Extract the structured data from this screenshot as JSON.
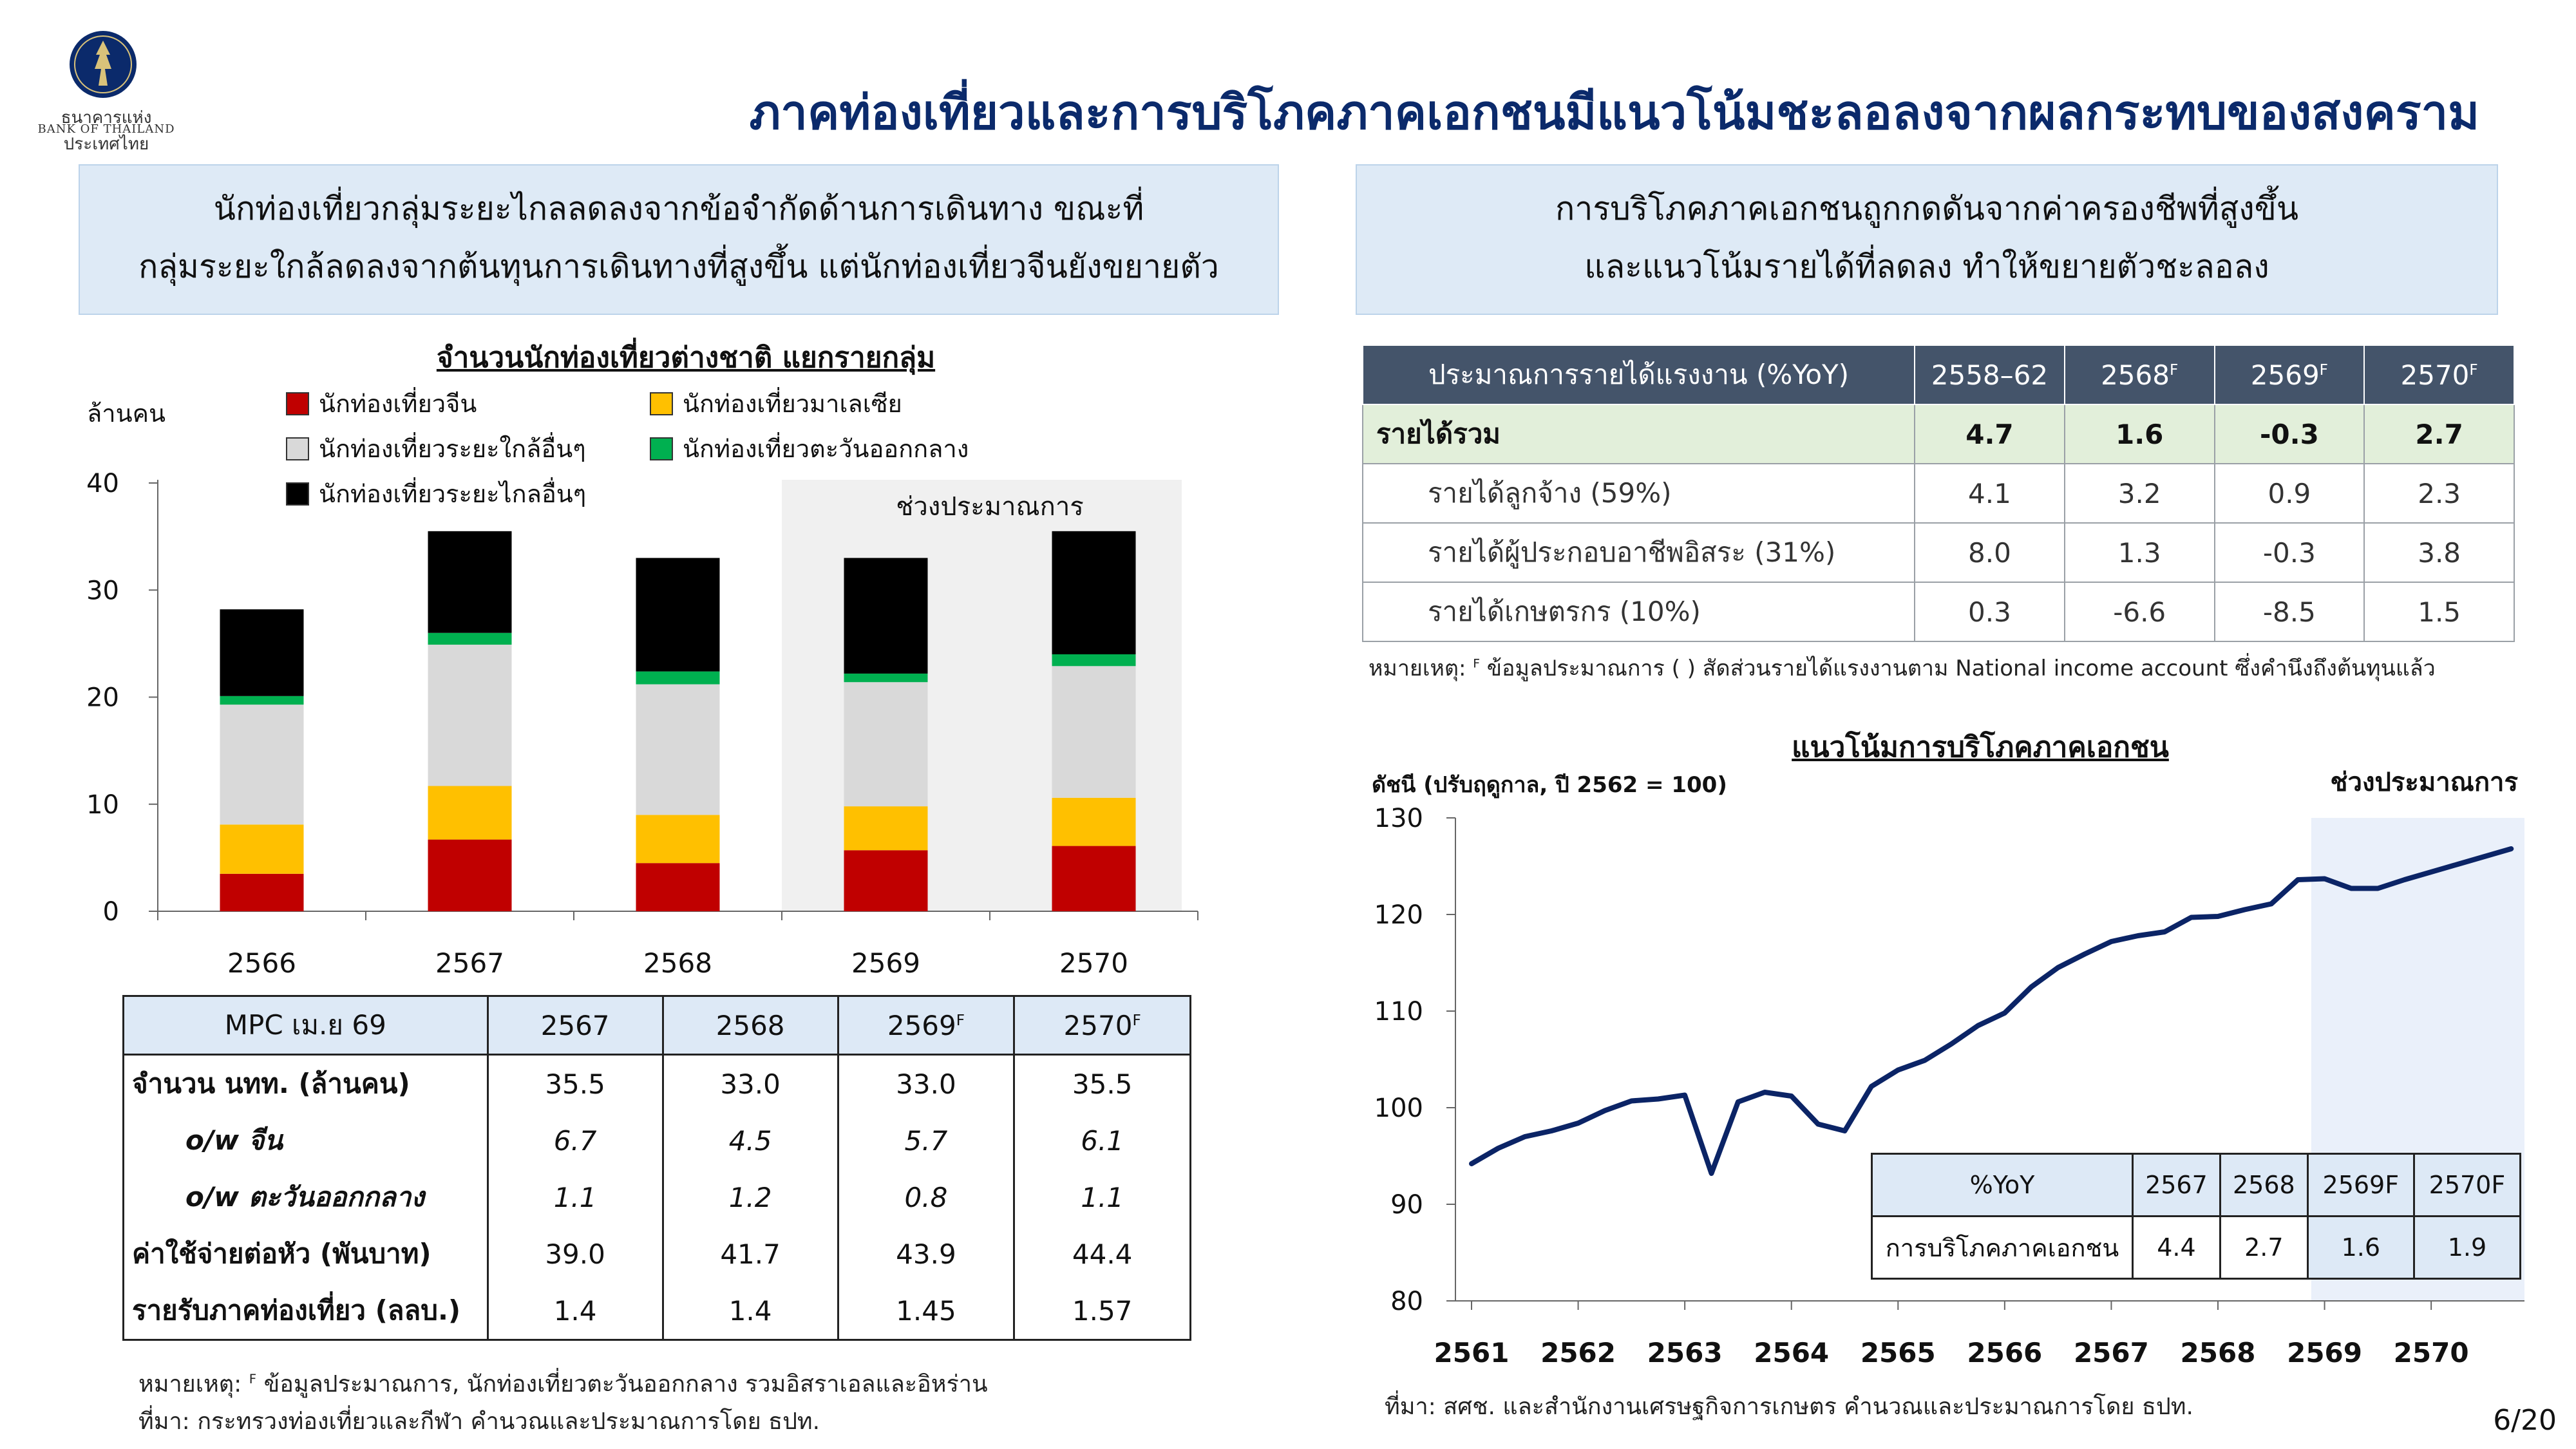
{
  "header": {
    "title": "ภาคท่องเที่ยวและการบริโภคภาคเอกชนมีแนวโน้มชะลอลงจากผลกระทบของสงคราม",
    "logo_text_th": "ธนาคารแห่งประเทศไทย",
    "logo_text_en": "BANK OF THAILAND",
    "page_number": "6/20"
  },
  "left": {
    "box_line1": "นักท่องเที่ยวกลุ่มระยะไกลลดลงจากข้อจำกัดด้านการเดินทาง ขณะที่",
    "box_line2": "กลุ่มระยะใกล้ลดลงจากต้นทุนการเดินทางที่สูงขึ้น แต่นักท่องเที่ยวจีนยังขยายตัว",
    "table": {
      "header": [
        "MPC เม.ย 69",
        "2567",
        "2568",
        "2569",
        "2570"
      ],
      "header_sup": [
        "",
        "",
        "",
        "F",
        "F"
      ],
      "rows": [
        {
          "label": "จำนวน นทท. (ล้านคน)",
          "values": [
            "35.5",
            "33.0",
            "33.0",
            "35.5"
          ]
        },
        {
          "label": "o/w จีน",
          "values": [
            "6.7",
            "4.5",
            "5.7",
            "6.1"
          ]
        },
        {
          "label": "o/w ตะวันออกกลาง",
          "values": [
            "1.1",
            "1.2",
            "0.8",
            "1.1"
          ]
        },
        {
          "label": "ค่าใช้จ่ายต่อหัว (พันบาท)",
          "values": [
            "39.0",
            "41.7",
            "43.9",
            "44.4"
          ]
        },
        {
          "label": "รายรับภาคท่องเที่ยว (ลลบ.)",
          "values": [
            "1.4",
            "1.4",
            "1.45",
            "1.57"
          ]
        }
      ]
    },
    "note_label": "หมายเหตุ:",
    "note_sup": "F",
    "note_text": "ข้อมูลประมาณการ, นักท่องเที่ยวตะวันออกกลาง รวมอิสราเอลและอิหร่าน",
    "source": "ที่มา: กระทรวงท่องเที่ยวและกีฬา คำนวณและประมาณการโดย ธปท."
  },
  "right": {
    "box_line1": "การบริโภคภาคเอกชนถูกกดดันจากค่าครองชีพที่สูงขึ้น",
    "box_line2": "และแนวโน้มรายได้ที่ลดลง ทำให้ขยายตัวชะลอลง",
    "income_table": {
      "header": [
        "ประมาณการรายได้แรงงาน (%YoY)",
        "2558–62",
        "2568",
        "2569",
        "2570"
      ],
      "header_sup": [
        "",
        "",
        "F",
        "F",
        "F"
      ],
      "rows": [
        {
          "label": "รายได้รวม",
          "values": [
            "4.7",
            "1.6",
            "-0.3",
            "2.7"
          ]
        },
        {
          "label": "รายได้ลูกจ้าง (59%)",
          "values": [
            "4.1",
            "3.2",
            "0.9",
            "2.3"
          ]
        },
        {
          "label": "รายได้ผู้ประกอบอาชีพอิสระ (31%)",
          "values": [
            "8.0",
            "1.3",
            "-0.3",
            "3.8"
          ]
        },
        {
          "label": "รายได้เกษตรกร (10%)",
          "values": [
            "0.3",
            "-6.6",
            "-8.5",
            "1.5"
          ]
        }
      ]
    },
    "income_note_label": "หมายเหตุ:",
    "income_note_sup": "F",
    "income_note_text": "ข้อมูลประมาณการ ( ) สัดส่วนรายได้แรงงานตาม National income account ซึ่งคำนึงถึงต้นทุนแล้ว",
    "yoy_table": {
      "header": [
        "%YoY",
        "2567",
        "2568",
        "2569F",
        "2570F"
      ],
      "row_label": "การบริโภคภาคเอกชน",
      "values": [
        "4.4",
        "2.7",
        "1.6",
        "1.9"
      ]
    },
    "source": "ที่มา: สศช. และสำนักงานเศรษฐกิจการเกษตร คำนวณและประมาณการโดย ธปท."
  },
  "chart_data": [
    {
      "type": "bar",
      "stacked": true,
      "title": "จำนวนนักท่องเที่ยวต่างชาติ แยกรายกลุ่ม",
      "ylabel": "ล้านคน",
      "ylim": [
        0,
        40
      ],
      "yticks": [
        0,
        10,
        20,
        30,
        40
      ],
      "categories": [
        "2566",
        "2567",
        "2568",
        "2569",
        "2570"
      ],
      "forecast_label": "ช่วงประมาณการ",
      "forecast_categories": [
        "2569",
        "2570"
      ],
      "colors": {
        "จีน": "#c00000",
        "มาเลเซีย": "#ffc000",
        "ระยะใกล้": "#d9d9d9",
        "ตะวันออกกลาง": "#00b050",
        "ระยะไกล": "#000000",
        "forecast_bg": "#f0f0f0"
      },
      "series": [
        {
          "name": "นักท่องเที่ยวจีน",
          "key": "จีน",
          "values": [
            3.5,
            6.7,
            4.5,
            5.7,
            6.1
          ]
        },
        {
          "name": "นักท่องเที่ยวมาเลเซีย",
          "key": "มาเลเซีย",
          "values": [
            4.6,
            5.0,
            4.5,
            4.1,
            4.5
          ]
        },
        {
          "name": "นักท่องเที่ยวระยะใกล้อื่นๆ",
          "key": "ระยะใกล้",
          "values": [
            11.2,
            13.2,
            12.2,
            11.6,
            12.3
          ]
        },
        {
          "name": "นักท่องเที่ยวตะวันออกกลาง",
          "key": "ตะวันออกกลาง",
          "values": [
            0.8,
            1.1,
            1.2,
            0.8,
            1.1
          ]
        },
        {
          "name": "นักท่องเที่ยวระยะไกลอื่นๆ",
          "key": "ระยะไกล",
          "values": [
            8.1,
            9.5,
            10.6,
            10.8,
            11.5
          ]
        }
      ],
      "legend_order": [
        "จีน",
        "มาเลเซีย",
        "ระยะใกล้",
        "ตะวันออกกลาง",
        "ระยะไกล"
      ]
    },
    {
      "type": "line",
      "title": "แนวโน้มการบริโภคภาคเอกชน",
      "ylabel": "ดัชนี (ปรับฤดูกาล, ปี 2562 = 100)",
      "ylim": [
        80,
        130
      ],
      "yticks": [
        80,
        90,
        100,
        110,
        120,
        130
      ],
      "xlim": [
        2561,
        2570.875
      ],
      "xticks": [
        2561,
        2562,
        2563,
        2564,
        2565,
        2566,
        2567,
        2568,
        2569,
        2570
      ],
      "forecast_label": "ช่วงประมาณการ",
      "forecast_start": 2568.875,
      "line_color": "#0b2466",
      "forecast_bg": "#eaf0fa",
      "series": [
        {
          "x": [
            2561,
            2561.25,
            2561.5,
            2561.75,
            2562,
            2562.25,
            2562.5,
            2562.75,
            2563,
            2563.25,
            2563.5,
            2563.75,
            2564,
            2564.25,
            2564.5,
            2564.75,
            2565,
            2565.25,
            2565.5,
            2565.75,
            2566,
            2566.25,
            2566.5,
            2566.75,
            2567,
            2567.25,
            2567.5,
            2567.75,
            2568,
            2568.25,
            2568.5,
            2568.75,
            2569,
            2569.25,
            2569.5,
            2569.75,
            2570,
            2570.25,
            2570.5,
            2570.75
          ],
          "values": [
            94.2,
            95.8,
            97.0,
            97.6,
            98.4,
            99.7,
            100.7,
            100.9,
            101.3,
            93.2,
            100.6,
            101.6,
            101.2,
            98.3,
            97.6,
            102.2,
            103.9,
            104.9,
            106.6,
            108.5,
            109.8,
            112.5,
            114.5,
            115.9,
            117.2,
            117.8,
            118.2,
            119.7,
            119.8,
            120.5,
            121.1,
            123.6,
            123.7,
            122.7,
            122.7,
            123.6,
            124.4,
            125.2,
            126.0,
            126.8
          ]
        }
      ]
    }
  ]
}
